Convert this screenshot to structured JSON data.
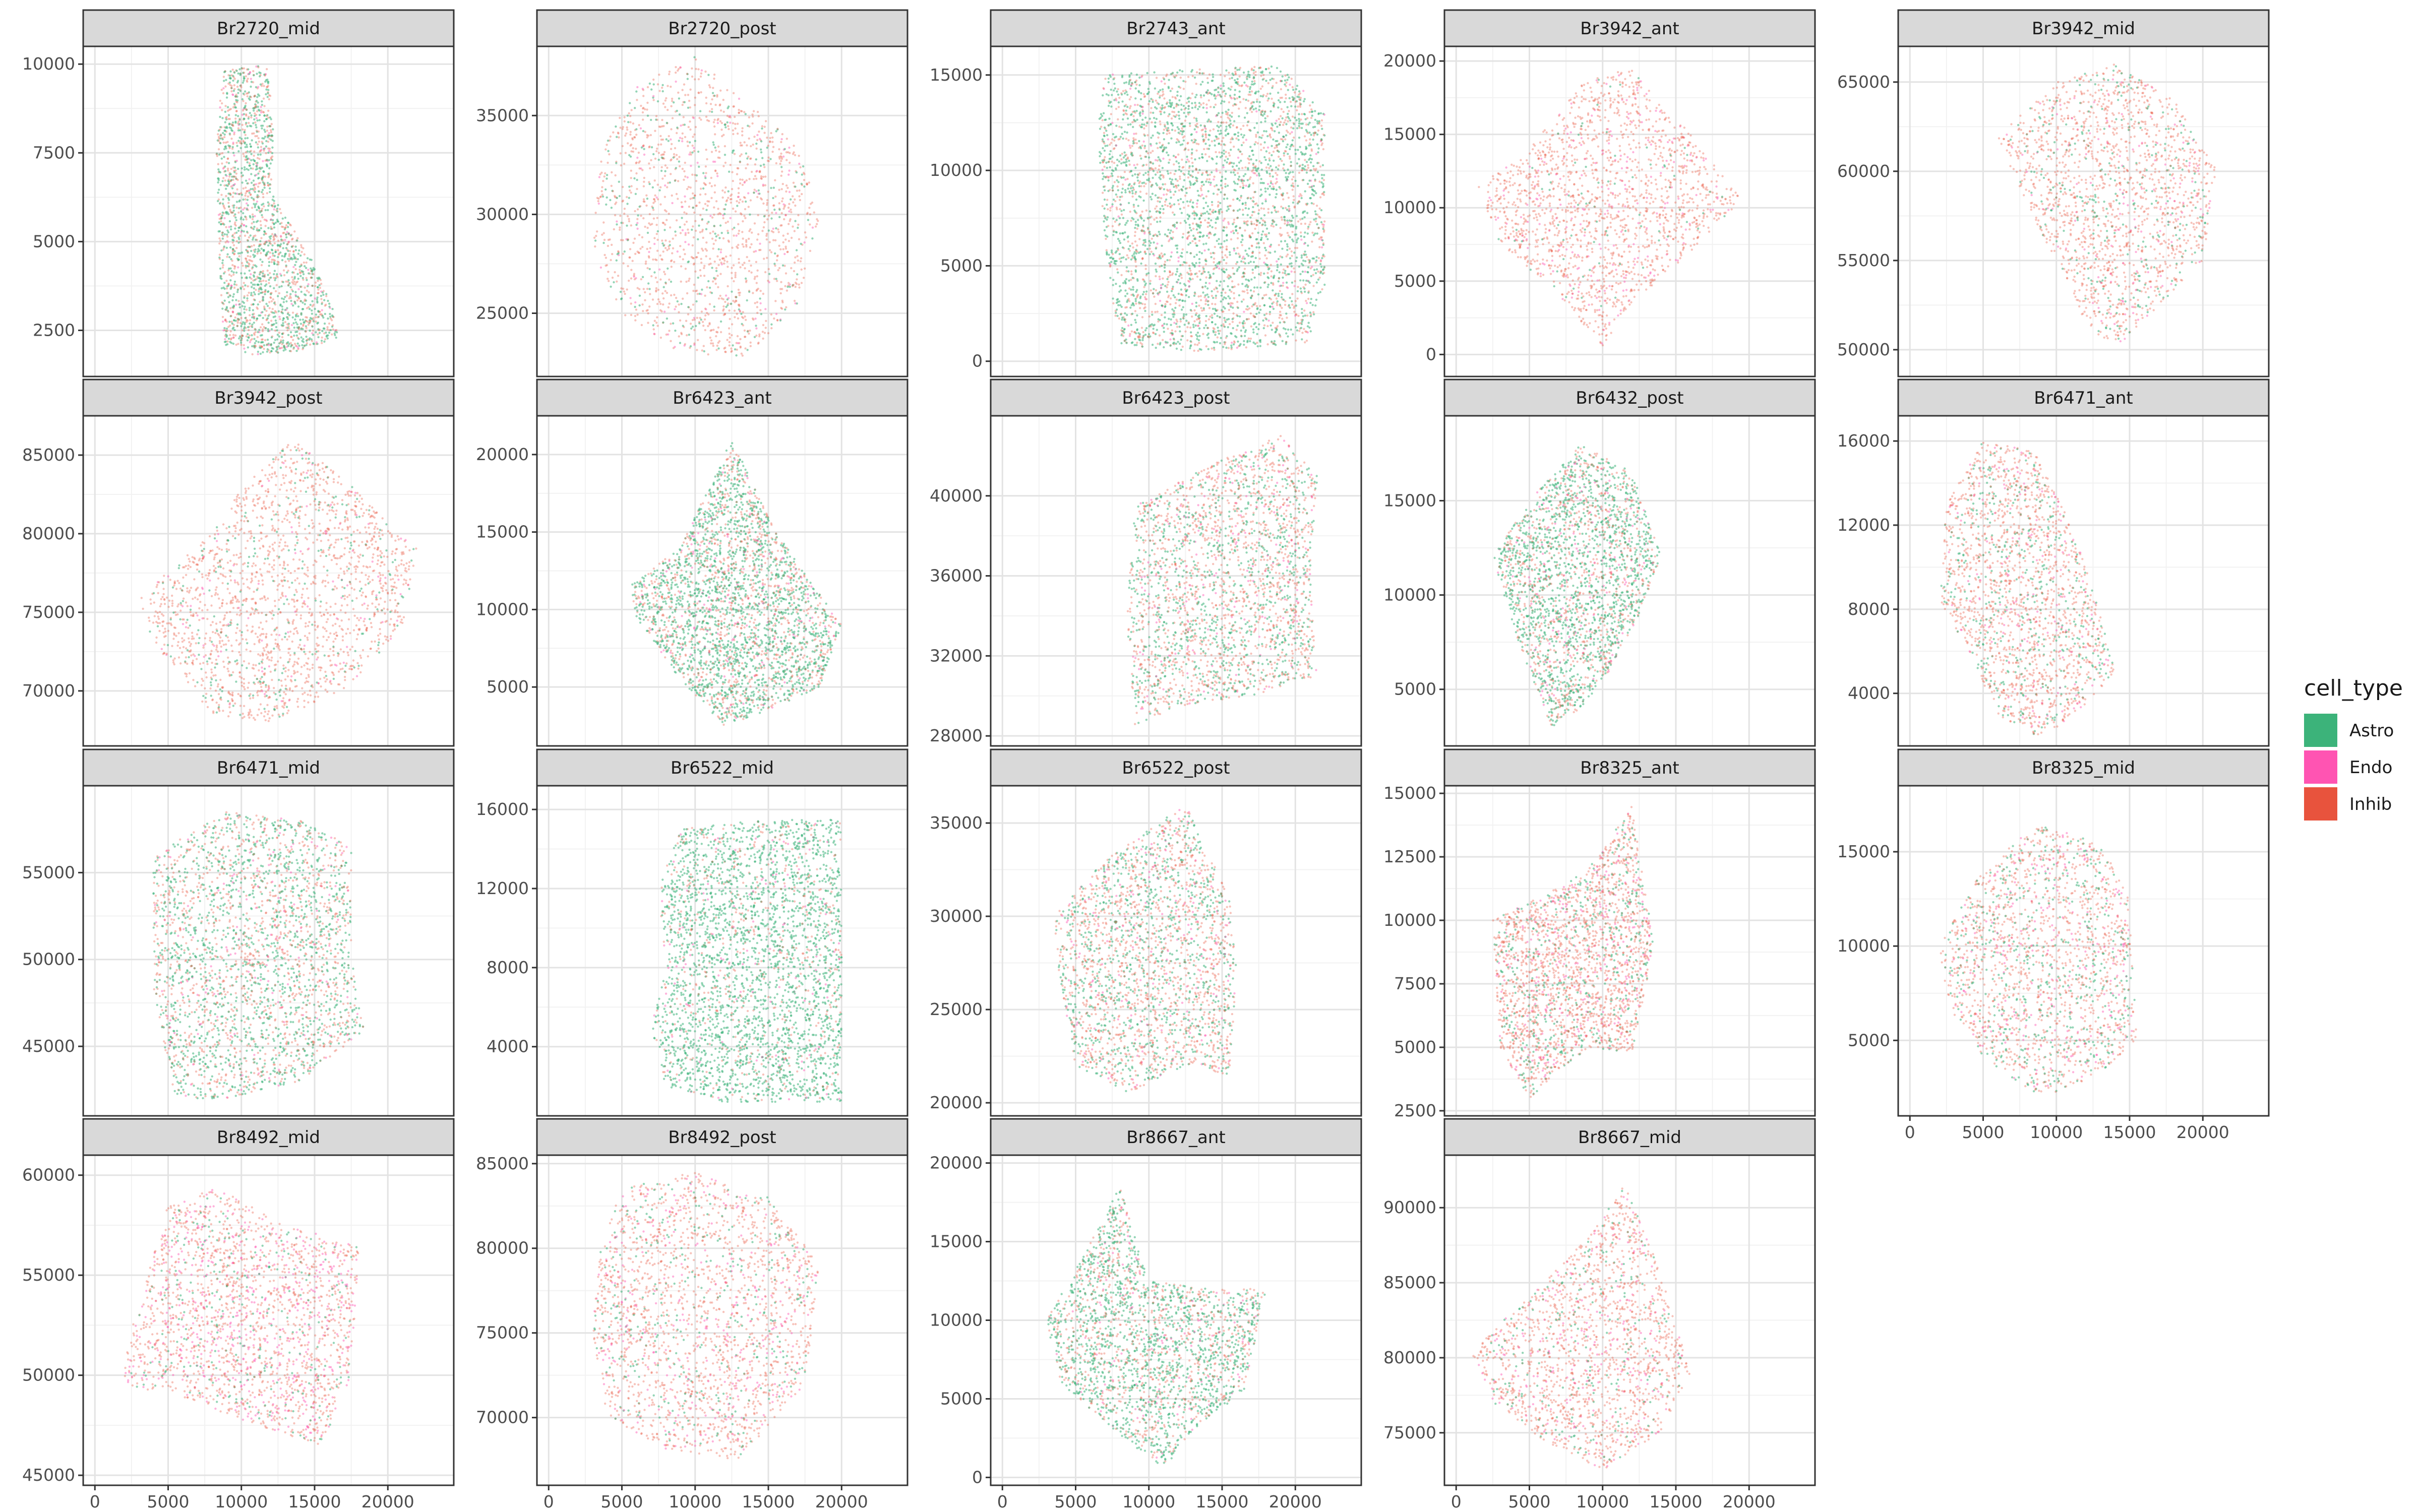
{
  "chart_data": {
    "type": "scatter",
    "facet_layout": "wrap 5 columns, free y, shared x",
    "x_ticks": [
      0,
      5000,
      10000,
      15000,
      20000
    ],
    "x_range": [
      -800,
      24500
    ],
    "grid": true,
    "legend": {
      "title": "cell_type",
      "position": "right",
      "entries": [
        {
          "label": "Astro",
          "color": "#3CB37A"
        },
        {
          "label": "Endo",
          "color": "#FF54B2"
        },
        {
          "label": "Inhib",
          "color": "#E8533D"
        }
      ]
    },
    "facets": [
      {
        "title": "Br2720_mid",
        "yticks": [
          2500,
          5000,
          7500,
          10000
        ],
        "ylim": [
          1200,
          10500
        ],
        "shape": [
          [
            8700,
            9800
          ],
          [
            11800,
            10000
          ],
          [
            12200,
            8000
          ],
          [
            12000,
            6400
          ],
          [
            14800,
            4500
          ],
          [
            16200,
            3200
          ],
          [
            16600,
            2300
          ],
          [
            13800,
            1900
          ],
          [
            10800,
            1800
          ],
          [
            8800,
            2100
          ],
          [
            8500,
            4500
          ],
          [
            8300,
            7500
          ]
        ],
        "mix": {
          "astro": 0.55,
          "endo": 0.05,
          "inhib": 0.4
        },
        "dots": 2000
      },
      {
        "title": "Br2720_post",
        "yticks": [
          25000,
          30000,
          35000
        ],
        "ylim": [
          21800,
          38500
        ],
        "shape": [
          [
            3500,
            33000
          ],
          [
            6000,
            36500
          ],
          [
            10000,
            38000
          ],
          [
            13000,
            36000
          ],
          [
            17000,
            33500
          ],
          [
            18500,
            30000
          ],
          [
            17000,
            25500
          ],
          [
            13500,
            22800
          ],
          [
            9000,
            23000
          ],
          [
            5000,
            25000
          ],
          [
            3000,
            28000
          ]
        ],
        "mix": {
          "astro": 0.18,
          "endo": 0.07,
          "inhib": 0.75
        },
        "dots": 1600
      },
      {
        "title": "Br2743_ant",
        "yticks": [
          0,
          5000,
          10000,
          15000
        ],
        "ylim": [
          -800,
          16500
        ],
        "shape": [
          [
            7000,
            15000
          ],
          [
            13000,
            15300
          ],
          [
            19000,
            15500
          ],
          [
            22000,
            13000
          ],
          [
            22000,
            4000
          ],
          [
            21000,
            1000
          ],
          [
            14000,
            500
          ],
          [
            8000,
            800
          ],
          [
            7000,
            6000
          ],
          [
            6500,
            12000
          ]
        ],
        "mix": {
          "astro": 0.58,
          "endo": 0.04,
          "inhib": 0.38
        },
        "dots": 3500
      },
      {
        "title": "Br3942_ant",
        "yticks": [
          0,
          5000,
          10000,
          15000,
          20000
        ],
        "ylim": [
          -1500,
          21000
        ],
        "shape": [
          [
            1500,
            11500
          ],
          [
            5000,
            14000
          ],
          [
            9000,
            19000
          ],
          [
            12000,
            19500
          ],
          [
            16000,
            15000
          ],
          [
            19500,
            10500
          ],
          [
            16000,
            7000
          ],
          [
            12000,
            3500
          ],
          [
            10000,
            500
          ],
          [
            7500,
            3500
          ],
          [
            3000,
            7500
          ]
        ],
        "mix": {
          "astro": 0.05,
          "endo": 0.1,
          "inhib": 0.85
        },
        "dots": 1800
      },
      {
        "title": "Br3942_mid",
        "yticks": [
          50000,
          55000,
          60000,
          65000
        ],
        "ylim": [
          48500,
          67000
        ],
        "shape": [
          [
            6000,
            62000
          ],
          [
            10000,
            65000
          ],
          [
            14000,
            66000
          ],
          [
            18000,
            64000
          ],
          [
            21000,
            60000
          ],
          [
            20000,
            55000
          ],
          [
            17000,
            52500
          ],
          [
            14000,
            50000
          ],
          [
            12000,
            51500
          ],
          [
            10000,
            55000
          ],
          [
            8000,
            58000
          ]
        ],
        "mix": {
          "astro": 0.15,
          "endo": 0.07,
          "inhib": 0.78
        },
        "dots": 1800
      },
      {
        "title": "Br3942_post",
        "yticks": [
          70000,
          75000,
          80000,
          85000
        ],
        "ylim": [
          66500,
          87500
        ],
        "shape": [
          [
            3000,
            76000
          ],
          [
            8000,
            80000
          ],
          [
            10500,
            83500
          ],
          [
            13500,
            86000
          ],
          [
            17000,
            83500
          ],
          [
            22000,
            79000
          ],
          [
            21000,
            74000
          ],
          [
            17000,
            70000
          ],
          [
            12000,
            68000
          ],
          [
            8000,
            68500
          ],
          [
            4000,
            73000
          ]
        ],
        "mix": {
          "astro": 0.15,
          "endo": 0.05,
          "inhib": 0.8
        },
        "dots": 2000
      },
      {
        "title": "Br6423_ant",
        "yticks": [
          5000,
          10000,
          15000,
          20000
        ],
        "ylim": [
          1200,
          22500
        ],
        "shape": [
          [
            5500,
            11500
          ],
          [
            9000,
            14000
          ],
          [
            12500,
            21000
          ],
          [
            15500,
            15000
          ],
          [
            20000,
            9000
          ],
          [
            18500,
            5000
          ],
          [
            15000,
            3500
          ],
          [
            12000,
            2500
          ],
          [
            8500,
            6000
          ],
          [
            6000,
            9500
          ]
        ],
        "mix": {
          "astro": 0.62,
          "endo": 0.05,
          "inhib": 0.33
        },
        "dots": 3000
      },
      {
        "title": "Br6423_post",
        "yticks": [
          28000,
          32000,
          36000,
          40000
        ],
        "ylim": [
          27500,
          44000
        ],
        "shape": [
          [
            9000,
            39500
          ],
          [
            14000,
            41500
          ],
          [
            19000,
            43000
          ],
          [
            21500,
            41000
          ],
          [
            21000,
            36000
          ],
          [
            21500,
            31000
          ],
          [
            17000,
            30000
          ],
          [
            12000,
            29500
          ],
          [
            9000,
            28500
          ],
          [
            8500,
            34000
          ]
        ],
        "mix": {
          "astro": 0.4,
          "endo": 0.07,
          "inhib": 0.53
        },
        "dots": 2500
      },
      {
        "title": "Br6432_post",
        "yticks": [
          5000,
          10000,
          15000
        ],
        "ylim": [
          2000,
          19500
        ],
        "shape": [
          [
            2500,
            12000
          ],
          [
            5000,
            15000
          ],
          [
            8500,
            18000
          ],
          [
            12000,
            16500
          ],
          [
            14000,
            12000
          ],
          [
            12500,
            9000
          ],
          [
            10500,
            6000
          ],
          [
            8500,
            4000
          ],
          [
            6500,
            3000
          ],
          [
            4000,
            8000
          ]
        ],
        "mix": {
          "astro": 0.6,
          "endo": 0.06,
          "inhib": 0.34
        },
        "dots": 2500
      },
      {
        "title": "Br6471_ant",
        "yticks": [
          4000,
          8000,
          12000,
          16000
        ],
        "ylim": [
          1500,
          17200
        ],
        "shape": [
          [
            2000,
            8500
          ],
          [
            2500,
            13000
          ],
          [
            5000,
            16000
          ],
          [
            8500,
            15500
          ],
          [
            11000,
            12000
          ],
          [
            12500,
            9000
          ],
          [
            14000,
            5000
          ],
          [
            12000,
            3500
          ],
          [
            9000,
            1800
          ],
          [
            6000,
            3000
          ],
          [
            4000,
            6000
          ]
        ],
        "mix": {
          "astro": 0.2,
          "endo": 0.07,
          "inhib": 0.73
        },
        "dots": 2000
      },
      {
        "title": "Br6471_mid",
        "yticks": [
          45000,
          50000,
          55000
        ],
        "ylim": [
          41000,
          60000
        ],
        "shape": [
          [
            4000,
            56000
          ],
          [
            9000,
            58500
          ],
          [
            14000,
            58000
          ],
          [
            17500,
            56500
          ],
          [
            17500,
            50000
          ],
          [
            18500,
            46000
          ],
          [
            14000,
            43000
          ],
          [
            9000,
            42000
          ],
          [
            5500,
            42000
          ],
          [
            4000,
            48000
          ]
        ],
        "mix": {
          "astro": 0.5,
          "endo": 0.05,
          "inhib": 0.45
        },
        "dots": 2800
      },
      {
        "title": "Br6522_mid",
        "yticks": [
          4000,
          8000,
          12000,
          16000
        ],
        "ylim": [
          500,
          17200
        ],
        "shape": [
          [
            7500,
            12000
          ],
          [
            9000,
            15000
          ],
          [
            14000,
            15500
          ],
          [
            20000,
            15500
          ],
          [
            20000,
            8000
          ],
          [
            20000,
            1200
          ],
          [
            12000,
            1200
          ],
          [
            8000,
            2000
          ],
          [
            7000,
            5000
          ],
          [
            8000,
            8000
          ]
        ],
        "mix": {
          "astro": 0.8,
          "endo": 0.04,
          "inhib": 0.16
        },
        "dots": 3200
      },
      {
        "title": "Br6522_post",
        "yticks": [
          20000,
          25000,
          30000,
          35000
        ],
        "ylim": [
          19300,
          37000
        ],
        "shape": [
          [
            3500,
            30000
          ],
          [
            7000,
            33000
          ],
          [
            12500,
            36000
          ],
          [
            15500,
            31000
          ],
          [
            16000,
            27000
          ],
          [
            15500,
            21500
          ],
          [
            12500,
            22000
          ],
          [
            8500,
            20500
          ],
          [
            5000,
            22000
          ],
          [
            4000,
            26000
          ]
        ],
        "mix": {
          "astro": 0.4,
          "endo": 0.07,
          "inhib": 0.53
        },
        "dots": 2400
      },
      {
        "title": "Br8325_ant",
        "yticks": [
          2500,
          5000,
          7500,
          10000,
          12500,
          15000
        ],
        "ylim": [
          2300,
          15300
        ],
        "shape": [
          [
            2500,
            10000
          ],
          [
            6000,
            11000
          ],
          [
            9000,
            12000
          ],
          [
            12000,
            14500
          ],
          [
            13500,
            9000
          ],
          [
            12000,
            4800
          ],
          [
            9000,
            5000
          ],
          [
            5000,
            3000
          ],
          [
            3000,
            5000
          ]
        ],
        "mix": {
          "astro": 0.2,
          "endo": 0.1,
          "inhib": 0.7
        },
        "dots": 2400
      },
      {
        "title": "Br8325_mid",
        "yticks": [
          5000,
          10000,
          15000
        ],
        "ylim": [
          1000,
          18500
        ],
        "shape": [
          [
            2000,
            10000
          ],
          [
            4500,
            13500
          ],
          [
            8500,
            16500
          ],
          [
            13000,
            15500
          ],
          [
            15000,
            12500
          ],
          [
            15500,
            5000
          ],
          [
            12500,
            3000
          ],
          [
            9000,
            2000
          ],
          [
            5000,
            4000
          ],
          [
            2500,
            7000
          ]
        ],
        "mix": {
          "astro": 0.25,
          "endo": 0.12,
          "inhib": 0.63
        },
        "dots": 2000
      },
      {
        "title": "Br8492_mid",
        "yticks": [
          45000,
          50000,
          55000,
          60000
        ],
        "ylim": [
          44500,
          61000
        ],
        "shape": [
          [
            2000,
            51000
          ],
          [
            5000,
            58500
          ],
          [
            8000,
            59500
          ],
          [
            13000,
            57500
          ],
          [
            18000,
            56500
          ],
          [
            17500,
            50000
          ],
          [
            15500,
            46500
          ],
          [
            11000,
            47500
          ],
          [
            5500,
            49000
          ],
          [
            2000,
            49500
          ]
        ],
        "mix": {
          "astro": 0.12,
          "endo": 0.25,
          "inhib": 0.63
        },
        "dots": 2200
      },
      {
        "title": "Br8492_post",
        "yticks": [
          70000,
          75000,
          80000,
          85000
        ],
        "ylim": [
          66000,
          85500
        ],
        "shape": [
          [
            3500,
            80000
          ],
          [
            5000,
            83500
          ],
          [
            10000,
            84500
          ],
          [
            15000,
            83000
          ],
          [
            18500,
            79000
          ],
          [
            17500,
            72000
          ],
          [
            13000,
            67500
          ],
          [
            8000,
            68000
          ],
          [
            4000,
            70000
          ],
          [
            3000,
            75000
          ]
        ],
        "mix": {
          "astro": 0.15,
          "endo": 0.15,
          "inhib": 0.7
        },
        "dots": 2200
      },
      {
        "title": "Br8667_ant",
        "yticks": [
          0,
          5000,
          10000,
          15000,
          20000
        ],
        "ylim": [
          -500,
          20500
        ],
        "shape": [
          [
            3000,
            10000
          ],
          [
            5500,
            14000
          ],
          [
            8000,
            18500
          ],
          [
            10000,
            12500
          ],
          [
            14000,
            12000
          ],
          [
            18000,
            12000
          ],
          [
            16500,
            5500
          ],
          [
            13000,
            3000
          ],
          [
            11000,
            500
          ],
          [
            7000,
            3500
          ],
          [
            4000,
            6000
          ]
        ],
        "mix": {
          "astro": 0.62,
          "endo": 0.05,
          "inhib": 0.33
        },
        "dots": 2400
      },
      {
        "title": "Br8667_mid",
        "yticks": [
          75000,
          80000,
          85000,
          90000
        ],
        "ylim": [
          71500,
          93500
        ],
        "shape": [
          [
            1000,
            80500
          ],
          [
            5500,
            84500
          ],
          [
            9000,
            88000
          ],
          [
            11500,
            91500
          ],
          [
            13500,
            87000
          ],
          [
            16000,
            79000
          ],
          [
            14000,
            75000
          ],
          [
            10000,
            72500
          ],
          [
            6000,
            74500
          ],
          [
            2500,
            77000
          ]
        ],
        "mix": {
          "astro": 0.12,
          "endo": 0.12,
          "inhib": 0.76
        },
        "dots": 1800
      }
    ]
  }
}
